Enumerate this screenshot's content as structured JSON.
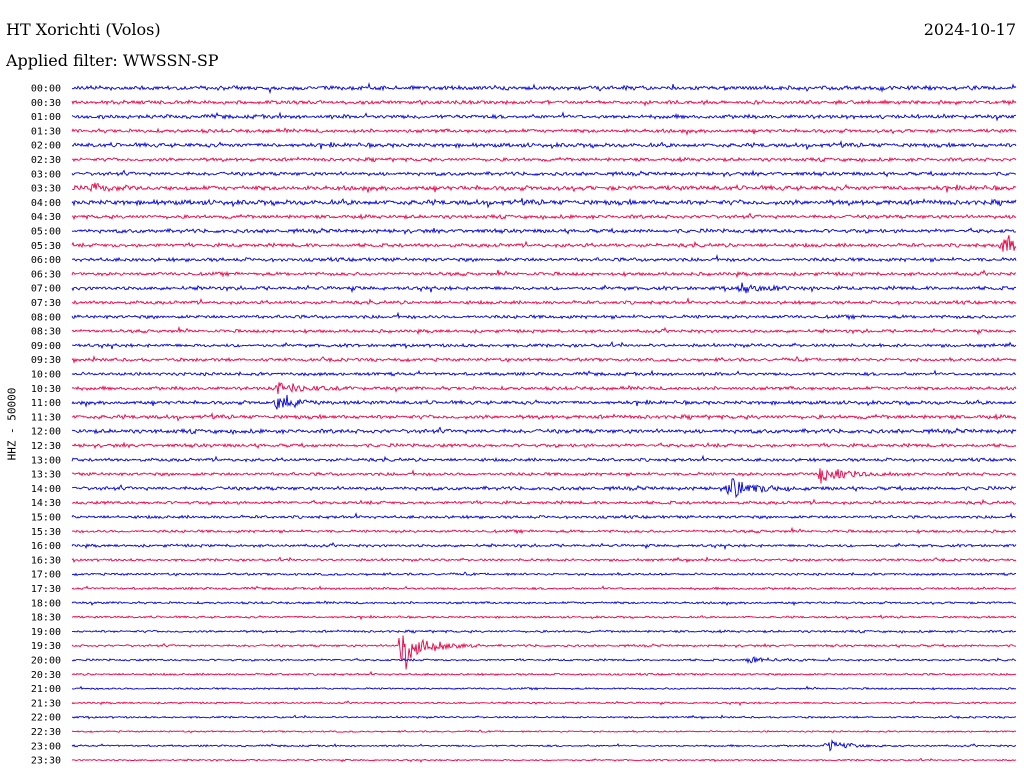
{
  "header": {
    "station": "HT Xorichti (Volos)",
    "date": "2024-10-17",
    "filter": "Applied filter: WWSSN-SP"
  },
  "channel_label": "HHZ - 50000",
  "chart_data": {
    "type": "line",
    "title": "HT Xorichti (Volos)",
    "subtitle": "Applied filter: WWSSN-SP",
    "ylabel": "HHZ - 50000",
    "x_minutes_per_row": 30,
    "row_labels": [
      "00:00",
      "00:30",
      "01:00",
      "01:30",
      "02:00",
      "02:30",
      "03:00",
      "03:30",
      "04:00",
      "04:30",
      "05:00",
      "05:30",
      "06:00",
      "06:30",
      "07:00",
      "07:30",
      "08:00",
      "08:30",
      "09:00",
      "09:30",
      "10:00",
      "10:30",
      "11:00",
      "11:30",
      "12:00",
      "12:30",
      "13:00",
      "13:30",
      "14:00",
      "14:30",
      "15:00",
      "15:30",
      "16:00",
      "16:30",
      "17:00",
      "17:30",
      "18:00",
      "18:30",
      "19:00",
      "19:30",
      "20:00",
      "20:30",
      "21:00",
      "21:30",
      "22:00",
      "22:30",
      "23:00",
      "23:30"
    ],
    "colors": [
      "#0000dd",
      "#ee0044"
    ],
    "noise_amplitude": [
      1.8,
      1.6,
      1.7,
      1.6,
      1.8,
      1.5,
      1.6,
      2.0,
      2.2,
      1.6,
      1.7,
      1.6,
      1.6,
      1.5,
      1.6,
      1.5,
      1.5,
      1.4,
      1.4,
      1.4,
      1.4,
      1.5,
      1.6,
      1.7,
      1.8,
      1.5,
      1.4,
      1.4,
      1.6,
      1.4,
      1.3,
      1.2,
      1.2,
      1.1,
      1.0,
      1.0,
      1.0,
      0.9,
      1.0,
      1.0,
      0.9,
      0.9,
      0.8,
      0.8,
      0.8,
      0.7,
      0.8,
      0.7
    ],
    "events": [
      {
        "row": 7,
        "minute": 0.6,
        "amplitude": 5
      },
      {
        "row": 11,
        "minute": 29.6,
        "amplitude": 12
      },
      {
        "row": 14,
        "minute": 21.3,
        "amplitude": 6
      },
      {
        "row": 21,
        "minute": 6.5,
        "amplitude": 8
      },
      {
        "row": 22,
        "minute": 6.5,
        "amplitude": 7
      },
      {
        "row": 27,
        "minute": 23.8,
        "amplitude": 10
      },
      {
        "row": 28,
        "minute": 20.9,
        "amplitude": 14
      },
      {
        "row": 39,
        "minute": 10.5,
        "amplitude": 28
      },
      {
        "row": 40,
        "minute": 21.5,
        "amplitude": 4
      },
      {
        "row": 46,
        "minute": 24.0,
        "amplitude": 6
      }
    ]
  }
}
